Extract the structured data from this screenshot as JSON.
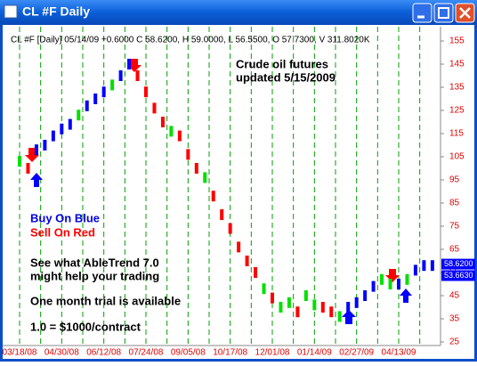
{
  "window": {
    "title": "CL #F Daily"
  },
  "chart_data": {
    "type": "bar",
    "title": "CL #F [Daily] 05/14/09 +0.6000 C 58.6200, H 59.0000, L 56.5500, O 57.7300, V 311.8020K",
    "annotations": [
      "Crude oil futures",
      "updated 5/15/2009",
      "Buy On Blue",
      "Sell On Red",
      "See what AbleTrend 7.0",
      "might help your trading",
      "One month trial is available",
      "1.0 = $1000/contract"
    ],
    "categories": [
      "03/18/08",
      null,
      null,
      null,
      null,
      "04/30/08",
      null,
      null,
      null,
      null,
      "06/12/08",
      null,
      null,
      null,
      null,
      "07/24/08",
      null,
      null,
      null,
      null,
      "09/05/08",
      null,
      null,
      null,
      null,
      "10/17/08",
      null,
      null,
      null,
      null,
      "12/01/08",
      null,
      null,
      null,
      null,
      "01/14/09",
      null,
      null,
      null,
      null,
      "02/27/09",
      null,
      null,
      null,
      null,
      "04/13/09",
      null,
      null,
      null,
      null
    ],
    "values": [
      103,
      100,
      108,
      110,
      114,
      117,
      119,
      123,
      127,
      130,
      133,
      136,
      140,
      145,
      140,
      133,
      126,
      120,
      116,
      114,
      106,
      100,
      96,
      88,
      80,
      74,
      66,
      60,
      55,
      48,
      44,
      40,
      42,
      38,
      45,
      41,
      40,
      38,
      36,
      40,
      42,
      45,
      49,
      52,
      50,
      50,
      52,
      56,
      58,
      58
    ],
    "colors": [
      "#00e000",
      "#ff0000",
      "#0000ff",
      "#0000ff",
      "#0000ff",
      "#0000ff",
      "#0000ff",
      "#00e000",
      "#0000ff",
      "#0000ff",
      "#0000ff",
      "#00e000",
      "#0000ff",
      "#0000ff",
      "#ff0000",
      "#ff0000",
      "#ff0000",
      "#ff0000",
      "#00e000",
      "#ff0000",
      "#ff0000",
      "#ff0000",
      "#00e000",
      "#ff0000",
      "#ff0000",
      "#ff0000",
      "#ff0000",
      "#ff0000",
      "#ff0000",
      "#00e000",
      "#ff0000",
      "#00e000",
      "#00e000",
      "#ff0000",
      "#00e000",
      "#00e000",
      "#ff0000",
      "#ff0000",
      "#00e000",
      "#0000ff",
      "#0000ff",
      "#0000ff",
      "#0000ff",
      "#00e000",
      "#00e000",
      "#0000ff",
      "#00e000",
      "#0000ff",
      "#0000ff",
      "#0000ff"
    ],
    "price_labels": [
      {
        "value": 58.62,
        "label": "58.6200",
        "color": "#0000ff"
      },
      {
        "value": 53.663,
        "label": "53.6630",
        "color": "#0000ff"
      }
    ],
    "ylim": [
      25,
      155
    ],
    "yticks": [
      155,
      145,
      135,
      125,
      115,
      105,
      95,
      85,
      75,
      65,
      55,
      45,
      35,
      25
    ],
    "grid": true
  }
}
